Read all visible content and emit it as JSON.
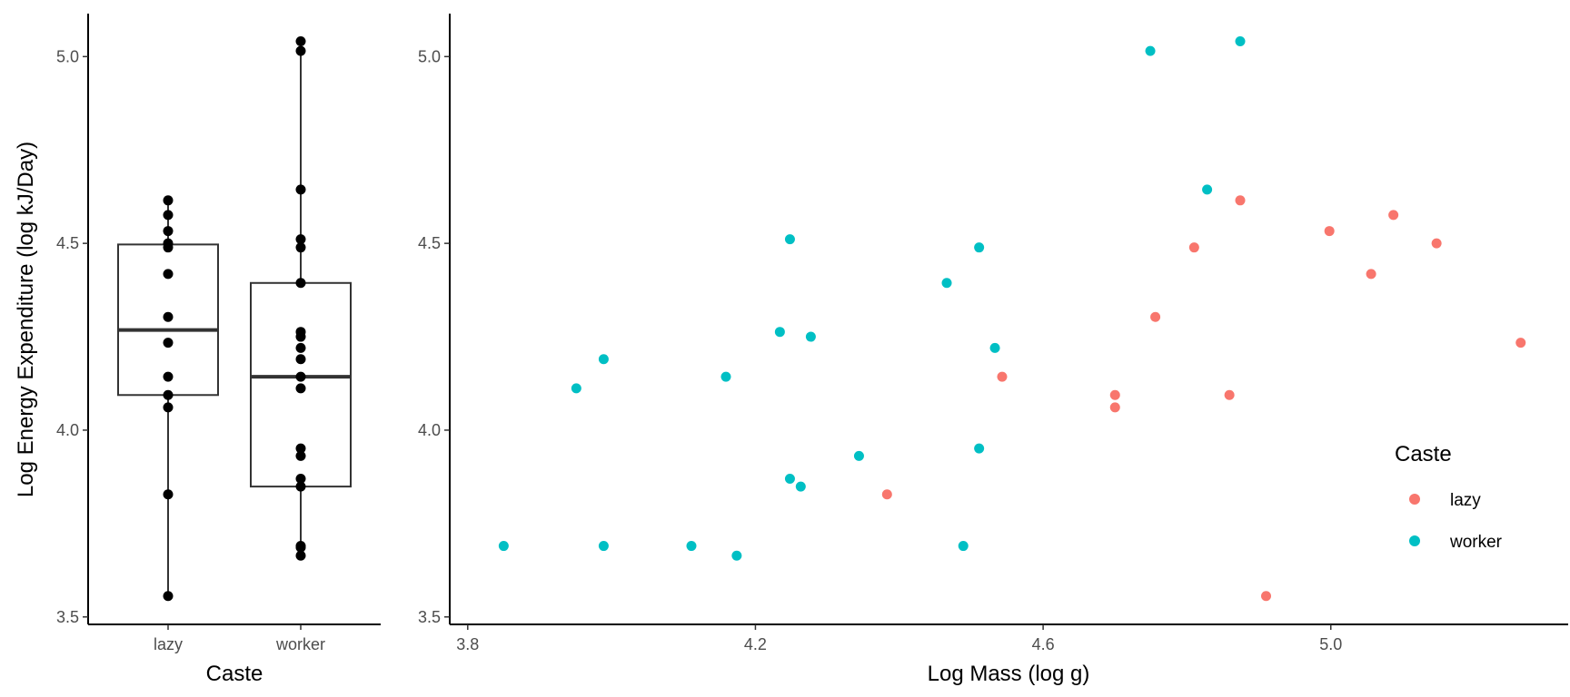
{
  "chart_data": [
    {
      "type": "box",
      "xlabel": "Caste",
      "ylabel": "Log Energy Expenditure (log kJ/Day)",
      "categories": [
        "lazy",
        "worker"
      ],
      "ylim": [
        3.48,
        5.115
      ],
      "yticks": [
        "3.5",
        "4.0",
        "4.5",
        "5.0"
      ],
      "grid": false,
      "boxes": [
        {
          "name": "lazy",
          "min": 3.556,
          "q1": 4.094,
          "median": 4.268,
          "q3": 4.497,
          "max": 4.615
        },
        {
          "name": "worker",
          "min": 3.664,
          "q1": 3.849,
          "median": 4.143,
          "q3": 4.394,
          "max": 5.041
        }
      ],
      "points": {
        "lazy": [
          4.615,
          4.576,
          4.533,
          4.5,
          4.489,
          4.418,
          4.303,
          4.234,
          4.143,
          4.094,
          4.061,
          3.828,
          3.556
        ],
        "worker": [
          5.041,
          5.015,
          4.644,
          4.511,
          4.489,
          4.394,
          4.263,
          4.25,
          4.22,
          4.19,
          4.143,
          4.112,
          3.951,
          3.931,
          3.87,
          3.849,
          3.69,
          3.686,
          3.664
        ]
      }
    },
    {
      "type": "scatter",
      "xlabel": "Log Mass (log g)",
      "ylabel": "",
      "xlim": [
        3.775,
        5.33
      ],
      "ylim": [
        3.48,
        5.115
      ],
      "xticks": [
        "3.8",
        "4.2",
        "4.6",
        "5.0"
      ],
      "yticks": [
        "3.5",
        "4.0",
        "4.5",
        "5.0"
      ],
      "grid": false,
      "legend": {
        "title": "Caste",
        "position": "right",
        "entries": [
          "lazy",
          "worker"
        ]
      },
      "colors": {
        "lazy": "#F8766D",
        "worker": "#00BFC4"
      },
      "series": [
        {
          "name": "lazy",
          "points": [
            {
              "x": 4.383,
              "y": 3.828
            },
            {
              "x": 4.543,
              "y": 4.143
            },
            {
              "x": 4.7,
              "y": 4.094
            },
            {
              "x": 4.7,
              "y": 4.061
            },
            {
              "x": 4.756,
              "y": 4.303
            },
            {
              "x": 4.81,
              "y": 4.489
            },
            {
              "x": 4.859,
              "y": 4.094
            },
            {
              "x": 4.874,
              "y": 4.615
            },
            {
              "x": 4.91,
              "y": 3.556
            },
            {
              "x": 4.998,
              "y": 4.533
            },
            {
              "x": 5.056,
              "y": 4.418
            },
            {
              "x": 5.087,
              "y": 4.576
            },
            {
              "x": 5.147,
              "y": 4.5
            },
            {
              "x": 5.264,
              "y": 4.234
            }
          ]
        },
        {
          "name": "worker",
          "points": [
            {
              "x": 3.85,
              "y": 3.69
            },
            {
              "x": 3.951,
              "y": 4.112
            },
            {
              "x": 3.989,
              "y": 4.19
            },
            {
              "x": 3.989,
              "y": 3.69
            },
            {
              "x": 4.111,
              "y": 3.69
            },
            {
              "x": 4.159,
              "y": 4.143
            },
            {
              "x": 4.174,
              "y": 3.664
            },
            {
              "x": 4.234,
              "y": 4.263
            },
            {
              "x": 4.248,
              "y": 3.87
            },
            {
              "x": 4.248,
              "y": 4.511
            },
            {
              "x": 4.263,
              "y": 3.849
            },
            {
              "x": 4.277,
              "y": 4.25
            },
            {
              "x": 4.344,
              "y": 3.931
            },
            {
              "x": 4.466,
              "y": 4.394
            },
            {
              "x": 4.489,
              "y": 3.69
            },
            {
              "x": 4.511,
              "y": 4.489
            },
            {
              "x": 4.511,
              "y": 3.951
            },
            {
              "x": 4.533,
              "y": 4.22
            },
            {
              "x": 4.749,
              "y": 5.015
            },
            {
              "x": 4.828,
              "y": 4.644
            },
            {
              "x": 4.874,
              "y": 5.041
            }
          ]
        }
      ]
    }
  ]
}
